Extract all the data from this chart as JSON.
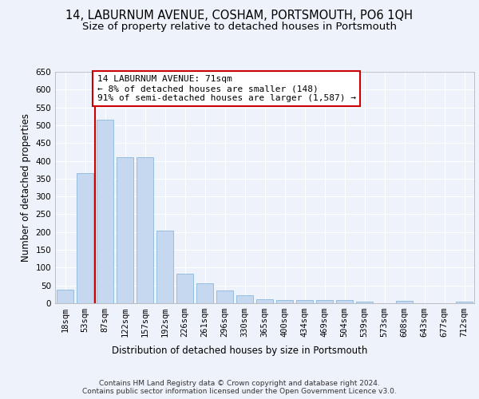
{
  "title1": "14, LABURNUM AVENUE, COSHAM, PORTSMOUTH, PO6 1QH",
  "title2": "Size of property relative to detached houses in Portsmouth",
  "xlabel": "Distribution of detached houses by size in Portsmouth",
  "ylabel": "Number of detached properties",
  "bar_labels": [
    "18sqm",
    "53sqm",
    "87sqm",
    "122sqm",
    "157sqm",
    "192sqm",
    "226sqm",
    "261sqm",
    "296sqm",
    "330sqm",
    "365sqm",
    "400sqm",
    "434sqm",
    "469sqm",
    "504sqm",
    "539sqm",
    "573sqm",
    "608sqm",
    "643sqm",
    "677sqm",
    "712sqm"
  ],
  "bar_heights": [
    37,
    365,
    515,
    410,
    410,
    205,
    84,
    55,
    35,
    22,
    11,
    9,
    9,
    9,
    9,
    4,
    0,
    6,
    0,
    0,
    5
  ],
  "bar_color": "#c5d8f0",
  "bar_edge_color": "#7aaed6",
  "vline_color": "#cc0000",
  "annotation_text": "14 LABURNUM AVENUE: 71sqm\n← 8% of detached houses are smaller (148)\n91% of semi-detached houses are larger (1,587) →",
  "annotation_box_color": "#ffffff",
  "annotation_box_edge": "#cc0000",
  "ylim": [
    0,
    650
  ],
  "yticks": [
    0,
    50,
    100,
    150,
    200,
    250,
    300,
    350,
    400,
    450,
    500,
    550,
    600,
    650
  ],
  "footer": "Contains HM Land Registry data © Crown copyright and database right 2024.\nContains public sector information licensed under the Open Government Licence v3.0.",
  "bg_color": "#eef2fa",
  "plot_bg_color": "#eef2fa",
  "grid_color": "#ffffff",
  "title1_fontsize": 10.5,
  "title2_fontsize": 9.5,
  "xlabel_fontsize": 8.5,
  "ylabel_fontsize": 8.5,
  "tick_fontsize": 7.5,
  "annotation_fontsize": 8,
  "footer_fontsize": 6.5
}
